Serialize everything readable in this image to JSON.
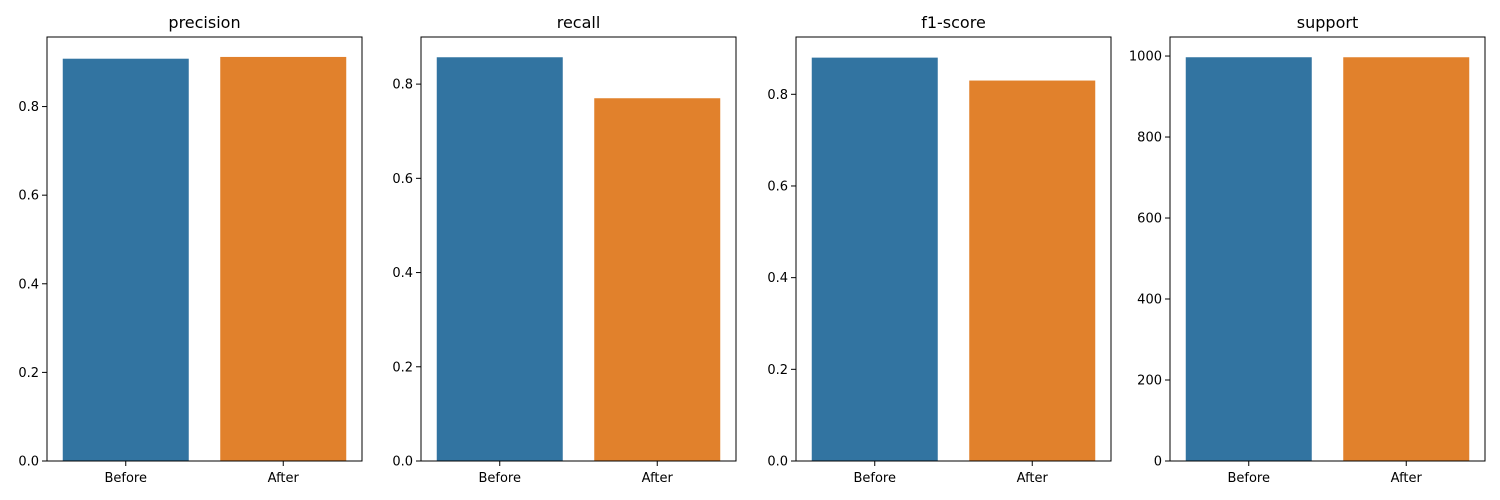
{
  "colors": {
    "before": "#3274a1",
    "after": "#e1812c"
  },
  "chart_data": [
    {
      "type": "bar",
      "title": "precision",
      "categories": [
        "Before",
        "After"
      ],
      "values": [
        0.908,
        0.912
      ],
      "ylim": [
        0,
        0.957
      ],
      "yticks": [
        0.0,
        0.2,
        0.4,
        0.6,
        0.8
      ],
      "tick_labels": [
        "0.0",
        "0.2",
        "0.4",
        "0.6",
        "0.8"
      ]
    },
    {
      "type": "bar",
      "title": "recall",
      "categories": [
        "Before",
        "After"
      ],
      "values": [
        0.857,
        0.77
      ],
      "ylim": [
        0,
        0.9
      ],
      "yticks": [
        0.0,
        0.2,
        0.4,
        0.6,
        0.8
      ],
      "tick_labels": [
        "0.0",
        "0.2",
        "0.4",
        "0.6",
        "0.8"
      ]
    },
    {
      "type": "bar",
      "title": "f1-score",
      "categories": [
        "Before",
        "After"
      ],
      "values": [
        0.88,
        0.83
      ],
      "ylim": [
        0,
        0.925
      ],
      "yticks": [
        0.0,
        0.2,
        0.4,
        0.6,
        0.8
      ],
      "tick_labels": [
        "0.0",
        "0.2",
        "0.4",
        "0.6",
        "0.8"
      ]
    },
    {
      "type": "bar",
      "title": "support",
      "categories": [
        "Before",
        "After"
      ],
      "values": [
        997,
        997
      ],
      "ylim": [
        0,
        1047
      ],
      "yticks": [
        0,
        200,
        400,
        600,
        800,
        1000
      ],
      "tick_labels": [
        "0",
        "200",
        "400",
        "600",
        "800",
        "1000"
      ]
    }
  ]
}
